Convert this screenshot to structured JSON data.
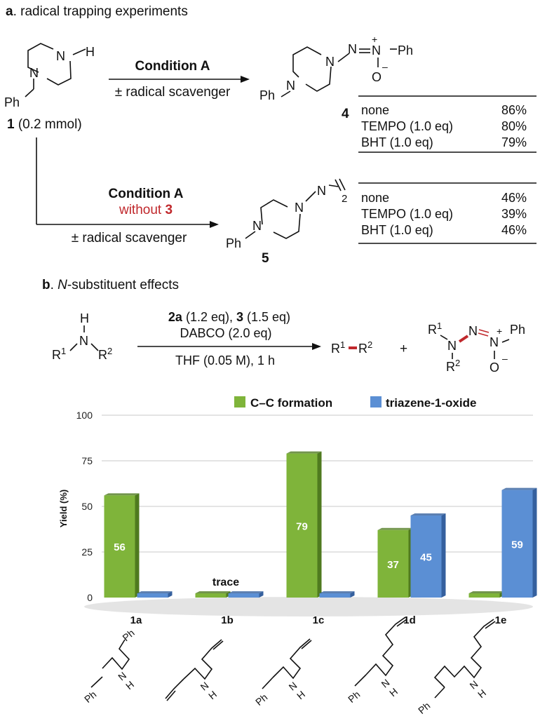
{
  "section_a": {
    "letter": "a",
    "title": ". radical trapping experiments",
    "substrate_label_num": "1",
    "substrate_label_rest": " (0.2 mmol)",
    "top_arrow": {
      "condition": "Condition A",
      "sub": "± radical scavenger"
    },
    "product4_num": "4",
    "table4": [
      {
        "scavenger": "none",
        "yield": "86%"
      },
      {
        "scavenger": "TEMPO (1.0 eq)",
        "yield": "80%"
      },
      {
        "scavenger": "BHT (1.0 eq)",
        "yield": "79%"
      }
    ],
    "bottom_arrow": {
      "condition": "Condition A",
      "without": "without ",
      "without_num": "3",
      "sub": "± radical scavenger"
    },
    "product5_num": "5",
    "table5": [
      {
        "scavenger": "none",
        "yield": "46%"
      },
      {
        "scavenger": "TEMPO (1.0 eq)",
        "yield": "39%"
      },
      {
        "scavenger": "BHT (1.0 eq)",
        "yield": "46%"
      }
    ],
    "atoms": {
      "N": "N",
      "H": "H",
      "Ph": "Ph",
      "O": "O",
      "plus": "+",
      "minus": "–",
      "two": "2"
    }
  },
  "section_b": {
    "letter": "b",
    "title_pre": ". ",
    "title_italic": "N",
    "title_post": "-substituent effects",
    "reagents_line1": {
      "a": "2a",
      "a_eq": " (1.2 eq), ",
      "b": "3",
      "b_eq": " (1.5 eq)"
    },
    "reagents_line2": "DABCO (2.0 eq)",
    "conditions": "THF (0.05 M), 1 h",
    "plus": "+",
    "amine": {
      "R": "R",
      "one": "1",
      "two": "2",
      "N": "N",
      "H": "H"
    }
  },
  "chart_data": {
    "type": "bar",
    "categories": [
      "1a",
      "1b",
      "1c",
      "1d",
      "1e"
    ],
    "series": [
      {
        "name": "C–C formation",
        "color": "#7fb43a",
        "values": [
          56,
          0,
          79,
          37,
          0
        ],
        "labels": [
          "56",
          "",
          "79",
          "37",
          ""
        ]
      },
      {
        "name": "triazene-1-oxide",
        "color": "#5b8fd4",
        "values": [
          0,
          0,
          0,
          45,
          59
        ],
        "labels": [
          "",
          "",
          "",
          "45",
          "59"
        ]
      }
    ],
    "annotation": "trace",
    "ylabel": "Yield (%)",
    "yticks": [
      0,
      25,
      50,
      75,
      100
    ],
    "ylim": [
      0,
      100
    ],
    "legend_position": "top-right",
    "grid": true
  },
  "structures": {
    "ph": "Ph",
    "n": "N",
    "h": "H"
  }
}
